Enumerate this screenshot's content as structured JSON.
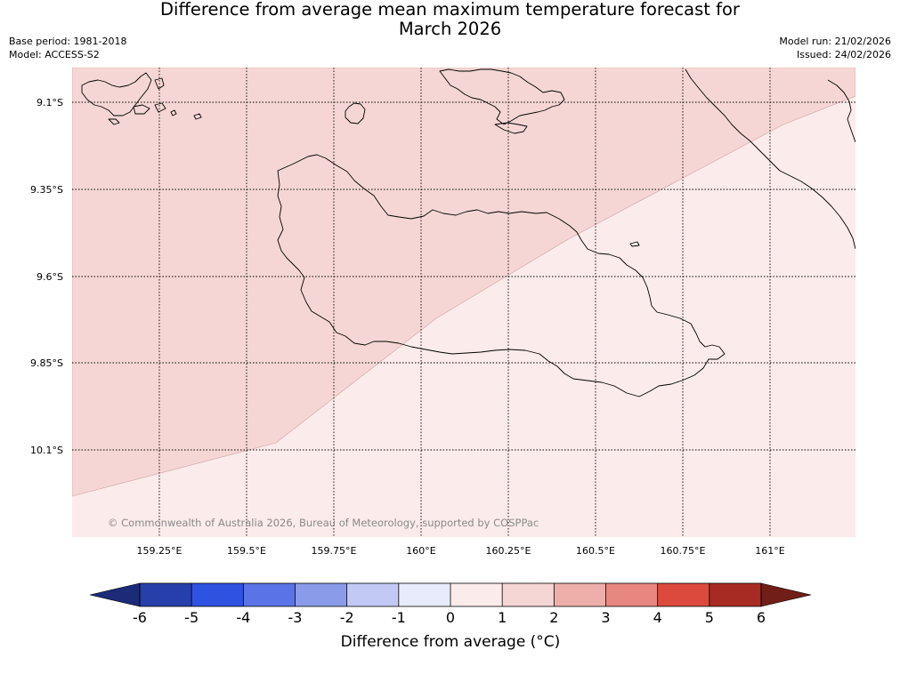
{
  "title": {
    "line1": "Difference from average mean maximum temperature forecast for",
    "line2": "March 2026"
  },
  "metadata": {
    "base_period": "Base period: 1981-2018",
    "model": "Model: ACCESS-S2",
    "model_run": "Model run: 21/02/2026",
    "issued": "Issued: 24/02/2026"
  },
  "map": {
    "lat_labels": [
      "9.1°S",
      "9.35°S",
      "9.6°S",
      "9.85°S",
      "10.1°S"
    ],
    "lon_labels": [
      "159.25°E",
      "159.5°E",
      "159.75°E",
      "160°E",
      "160.25°E",
      "160.5°E",
      "160.75°E",
      "161°E"
    ],
    "copyright": "© Commonwealth of Australia 2026, Bureau of Meteorology, supported by COSPPac",
    "fill_colors": {
      "band_1_to_2": "#f5d6d4",
      "band_0_to_1": "#fbebea"
    }
  },
  "colorbar": {
    "ticks": [
      "-6",
      "-5",
      "-4",
      "-3",
      "-2",
      "-1",
      "0",
      "1",
      "2",
      "3",
      "4",
      "5",
      "6"
    ],
    "colors": [
      "#273fab",
      "#2f52e0",
      "#5a73e6",
      "#8a9bea",
      "#c2c9f4",
      "#e8ebfb",
      "#fbebea",
      "#f5d6d4",
      "#eeafab",
      "#e78780",
      "#dc4a3e",
      "#a82b23"
    ],
    "under_color": "#1b2b78",
    "over_color": "#711e18",
    "label": "Difference from average (°C)"
  }
}
